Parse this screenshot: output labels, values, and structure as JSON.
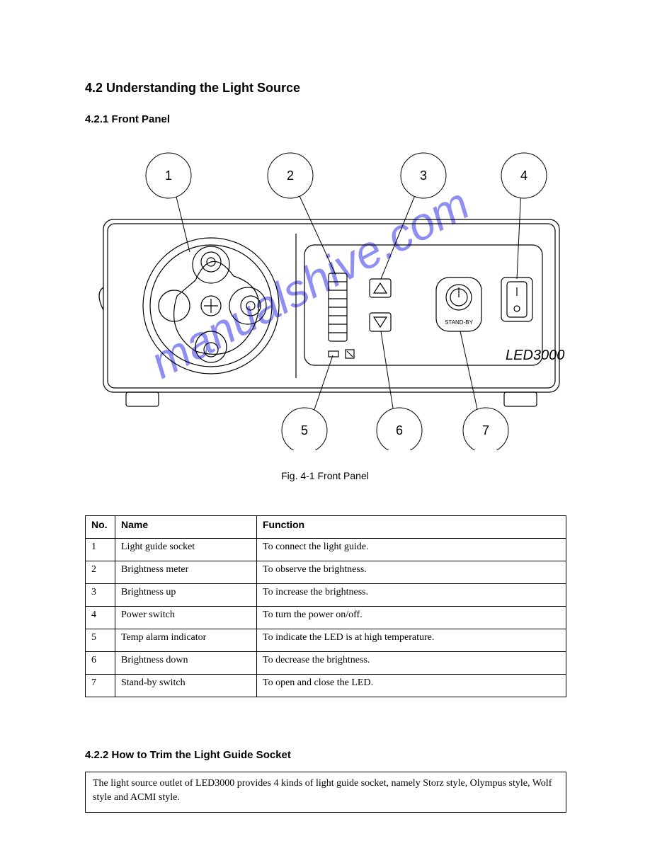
{
  "heading_main": "4.2 Understanding the Light Source",
  "heading_front": "4.2.1 Front Panel",
  "fig_caption": "Fig. 4-1 Front Panel",
  "callouts": {
    "top": [
      "1",
      "2",
      "3",
      "4"
    ],
    "bottom": [
      "5",
      "6",
      "7"
    ]
  },
  "device_label": "LED3000",
  "standby_label": "STAND-BY",
  "watermark": "manualshive.com",
  "table": {
    "headers": [
      "No.",
      "Name",
      "Function"
    ],
    "rows": [
      [
        "1",
        "Light guide socket",
        "To connect the light guide."
      ],
      [
        "2",
        "Brightness meter",
        "To observe the brightness."
      ],
      [
        "3",
        "Brightness up",
        "To increase the brightness."
      ],
      [
        "4",
        "Power switch",
        "To turn the power on/off."
      ],
      [
        "5",
        "Temp alarm indicator",
        "To indicate the LED is at high temperature."
      ],
      [
        "6",
        "Brightness down",
        "To decrease the brightness."
      ],
      [
        "7",
        "Stand-by switch",
        "To open and close the LED."
      ]
    ]
  },
  "heading_trim": "4.2.2 How to Trim the Light Guide Socket",
  "note_text": "The light source outlet of LED3000 provides 4 kinds of light guide socket, namely Storz style, Olympus style, Wolf style and ACMI style."
}
